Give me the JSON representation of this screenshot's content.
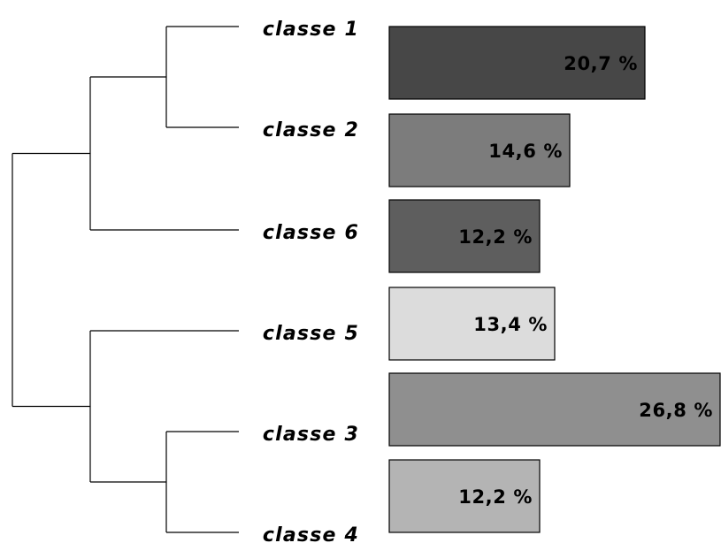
{
  "chart_data": {
    "type": "bar",
    "orientation": "horizontal",
    "categories": [
      "classe 1",
      "classe 2",
      "classe 6",
      "classe 5",
      "classe 3",
      "classe 4"
    ],
    "values": [
      20.7,
      14.6,
      12.2,
      13.4,
      26.8,
      12.2
    ],
    "value_labels": [
      "20,7 %",
      "14,6 %",
      "12,2 %",
      "13,4 %",
      "26,8 %",
      "12,2 %"
    ],
    "unit": "%",
    "colors": [
      "#474747",
      "#7c7c7c",
      "#5e5e5e",
      "#dcdcdc",
      "#8f8f8f",
      "#b4b4b4"
    ],
    "title": "",
    "xlabel": "",
    "ylabel": "",
    "xlim": [
      0,
      26.8
    ],
    "grid": false,
    "legend": "none",
    "dendrogram": {
      "leaf_order": [
        "classe 1",
        "classe 2",
        "classe 6",
        "classe 5",
        "classe 3",
        "classe 4"
      ],
      "clusters": [
        [
          "classe 1",
          "classe 2"
        ],
        [
          "classe 1",
          "classe 2",
          "classe 6"
        ],
        [
          "classe 3",
          "classe 4"
        ],
        [
          "classe 5",
          "classe 3",
          "classe 4"
        ],
        [
          "classe 1",
          "classe 2",
          "classe 6",
          "classe 5",
          "classe 3",
          "classe 4"
        ]
      ]
    }
  }
}
